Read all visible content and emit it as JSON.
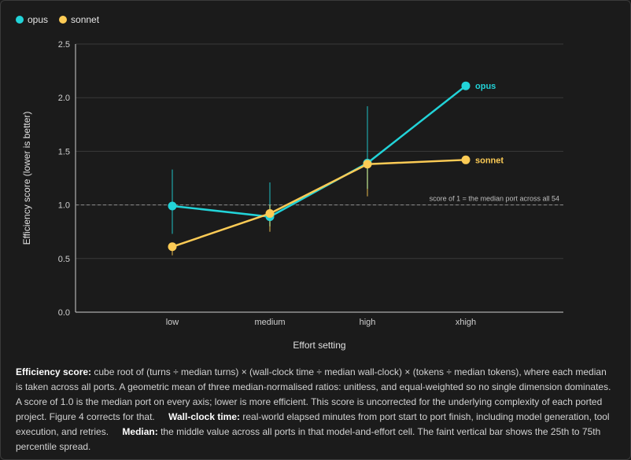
{
  "colors": {
    "opus": "#22d3d8",
    "sonnet": "#fccb55",
    "background": "#1b1b1b",
    "grid": "#3a3a3a"
  },
  "chart_data": {
    "type": "line",
    "xlabel": "Effort setting",
    "ylabel": "Efficiency score (lower is better)",
    "categories": [
      "low",
      "medium",
      "high",
      "xhigh"
    ],
    "ylim": [
      0,
      2.5
    ],
    "yticks": [
      "0.0",
      "0.5",
      "1.0",
      "1.5",
      "2.0",
      "2.5"
    ],
    "grid": true,
    "legend_position": "top-left",
    "series": [
      {
        "name": "opus",
        "values": [
          0.99,
          0.89,
          1.39,
          2.11
        ],
        "p25": [
          0.73,
          0.8,
          1.15,
          null
        ],
        "p75": [
          1.33,
          1.21,
          1.92,
          null
        ]
      },
      {
        "name": "sonnet",
        "values": [
          0.61,
          0.92,
          1.38,
          1.42
        ],
        "p25": [
          0.53,
          0.75,
          1.08,
          null
        ],
        "p75": [
          0.62,
          1.0,
          1.4,
          null
        ]
      }
    ],
    "reference_line": {
      "value": 1.0,
      "label": "score of 1 = the median port across all 54"
    }
  },
  "caption": {
    "efficiency_term": "Efficiency score:",
    "efficiency_text": " cube root of (turns ÷ median turns) × (wall-clock time ÷ median wall-clock) × (tokens ÷ median tokens), where each median is taken across all ports. A geometric mean of three median-normalised ratios: unitless, and equal-weighted so no single dimension dominates. A score of 1.0 is the median port on every axis; lower is more efficient. This score is uncorrected for the underlying complexity of each ported project. Figure 4 corrects for that.",
    "wallclock_term": "Wall-clock time:",
    "wallclock_text": " real-world elapsed minutes from port start to port finish, including model generation, tool execution, and retries.",
    "median_term": "Median:",
    "median_text": " the middle value across all ports in that model-and-effort cell. The faint vertical bar shows the 25th to 75th percentile spread."
  }
}
